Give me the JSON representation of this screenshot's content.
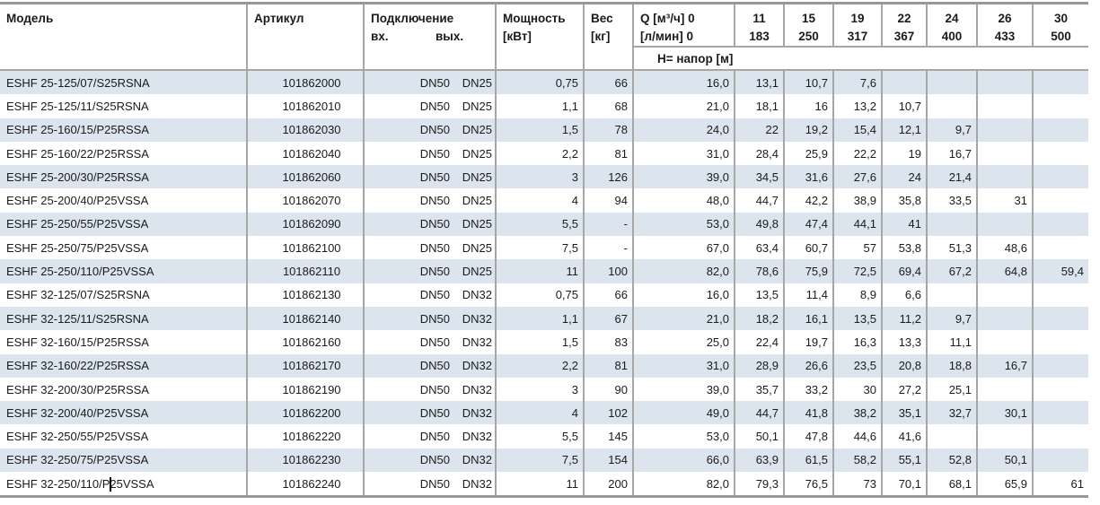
{
  "colors": {
    "stripe": "#dce4ee",
    "grid": "#a6a6a6",
    "frame": "#98989c",
    "text": "#1b1b1b"
  },
  "table": {
    "header": {
      "model": "Модель",
      "article": "Артикул",
      "connection": "Подключение",
      "inlet_label": "вх.",
      "outlet_label": "вых.",
      "power_line1": "Мощность",
      "power_line2": "[кВт]",
      "weight_line1": "Вес",
      "weight_line2": "[кг]",
      "q_line1": "Q [м³/ч] 0",
      "q_line2": "[л/мин] 0",
      "head_label": "Н= напор [м]",
      "flows": [
        {
          "m3h": "11",
          "lmin": "183"
        },
        {
          "m3h": "15",
          "lmin": "250"
        },
        {
          "m3h": "19",
          "lmin": "317"
        },
        {
          "m3h": "22",
          "lmin": "367"
        },
        {
          "m3h": "24",
          "lmin": "400"
        },
        {
          "m3h": "26",
          "lmin": "433"
        },
        {
          "m3h": "30",
          "lmin": "500"
        }
      ]
    },
    "rows": [
      {
        "model": "ESHF 25-125/07/S25RSNA",
        "article": "101862000",
        "inlet": "DN50",
        "outlet": "DN25",
        "power": "0,75",
        "weight": "66",
        "heads": [
          "16,0",
          "13,1",
          "10,7",
          "7,6",
          "",
          "",
          "",
          ""
        ]
      },
      {
        "model": "ESHF 25-125/11/S25RSNA",
        "article": "101862010",
        "inlet": "DN50",
        "outlet": "DN25",
        "power": "1,1",
        "weight": "68",
        "heads": [
          "21,0",
          "18,1",
          "16",
          "13,2",
          "10,7",
          "",
          "",
          ""
        ]
      },
      {
        "model": "ESHF 25-160/15/P25RSSA",
        "article": "101862030",
        "inlet": "DN50",
        "outlet": "DN25",
        "power": "1,5",
        "weight": "78",
        "heads": [
          "24,0",
          "22",
          "19,2",
          "15,4",
          "12,1",
          "9,7",
          "",
          ""
        ]
      },
      {
        "model": "ESHF 25-160/22/P25RSSA",
        "article": "101862040",
        "inlet": "DN50",
        "outlet": "DN25",
        "power": "2,2",
        "weight": "81",
        "heads": [
          "31,0",
          "28,4",
          "25,9",
          "22,2",
          "19",
          "16,7",
          "",
          ""
        ]
      },
      {
        "model": "ESHF 25-200/30/P25RSSA",
        "article": "101862060",
        "inlet": "DN50",
        "outlet": "DN25",
        "power": "3",
        "weight": "126",
        "heads": [
          "39,0",
          "34,5",
          "31,6",
          "27,6",
          "24",
          "21,4",
          "",
          ""
        ]
      },
      {
        "model": "ESHF 25-200/40/P25VSSA",
        "article": "101862070",
        "inlet": "DN50",
        "outlet": "DN25",
        "power": "4",
        "weight": "94",
        "heads": [
          "48,0",
          "44,7",
          "42,2",
          "38,9",
          "35,8",
          "33,5",
          "31",
          ""
        ]
      },
      {
        "model": "ESHF 25-250/55/P25VSSA",
        "article": "101862090",
        "inlet": "DN50",
        "outlet": "DN25",
        "power": "5,5",
        "weight": "-",
        "heads": [
          "53,0",
          "49,8",
          "47,4",
          "44,1",
          "41",
          "",
          "",
          ""
        ]
      },
      {
        "model": "ESHF 25-250/75/P25VSSA",
        "article": "101862100",
        "inlet": "DN50",
        "outlet": "DN25",
        "power": "7,5",
        "weight": "-",
        "heads": [
          "67,0",
          "63,4",
          "60,7",
          "57",
          "53,8",
          "51,3",
          "48,6",
          ""
        ]
      },
      {
        "model": "ESHF 25-250/110/P25VSSA",
        "article": "101862110",
        "inlet": "DN50",
        "outlet": "DN25",
        "power": "11",
        "weight": "100",
        "heads": [
          "82,0",
          "78,6",
          "75,9",
          "72,5",
          "69,4",
          "67,2",
          "64,8",
          "59,4"
        ]
      },
      {
        "model": "ESHF 32-125/07/S25RSNA",
        "article": "101862130",
        "inlet": "DN50",
        "outlet": "DN32",
        "power": "0,75",
        "weight": "66",
        "heads": [
          "16,0",
          "13,5",
          "11,4",
          "8,9",
          "6,6",
          "",
          "",
          ""
        ]
      },
      {
        "model": "ESHF 32-125/11/S25RSNA",
        "article": "101862140",
        "inlet": "DN50",
        "outlet": "DN32",
        "power": "1,1",
        "weight": "67",
        "heads": [
          "21,0",
          "18,2",
          "16,1",
          "13,5",
          "11,2",
          "9,7",
          "",
          ""
        ]
      },
      {
        "model": "ESHF 32-160/15/P25RSSA",
        "article": "101862160",
        "inlet": "DN50",
        "outlet": "DN32",
        "power": "1,5",
        "weight": "83",
        "heads": [
          "25,0",
          "22,4",
          "19,7",
          "16,3",
          "13,3",
          "11,1",
          "",
          ""
        ]
      },
      {
        "model": "ESHF 32-160/22/P25RSSA",
        "article": "101862170",
        "inlet": "DN50",
        "outlet": "DN32",
        "power": "2,2",
        "weight": "81",
        "heads": [
          "31,0",
          "28,9",
          "26,6",
          "23,5",
          "20,8",
          "18,8",
          "16,7",
          ""
        ]
      },
      {
        "model": "ESHF 32-200/30/P25RSSA",
        "article": "101862190",
        "inlet": "DN50",
        "outlet": "DN32",
        "power": "3",
        "weight": "90",
        "heads": [
          "39,0",
          "35,7",
          "33,2",
          "30",
          "27,2",
          "25,1",
          "",
          ""
        ]
      },
      {
        "model": "ESHF 32-200/40/P25VSSA",
        "article": "101862200",
        "inlet": "DN50",
        "outlet": "DN32",
        "power": "4",
        "weight": "102",
        "heads": [
          "49,0",
          "44,7",
          "41,8",
          "38,2",
          "35,1",
          "32,7",
          "30,1",
          ""
        ]
      },
      {
        "model": "ESHF 32-250/55/P25VSSA",
        "article": "101862220",
        "inlet": "DN50",
        "outlet": "DN32",
        "power": "5,5",
        "weight": "145",
        "heads": [
          "53,0",
          "50,1",
          "47,8",
          "44,6",
          "41,6",
          "",
          "",
          ""
        ]
      },
      {
        "model": "ESHF 32-250/75/P25VSSA",
        "article": "101862230",
        "inlet": "DN50",
        "outlet": "DN32",
        "power": "7,5",
        "weight": "154",
        "heads": [
          "66,0",
          "63,9",
          "61,5",
          "58,2",
          "55,1",
          "52,8",
          "50,1",
          ""
        ]
      },
      {
        "model": "ESHF 32-250/110/P25VSSA",
        "article": "101862240",
        "inlet": "DN50",
        "outlet": "DN32",
        "power": "11",
        "weight": "200",
        "heads": [
          "82,0",
          "79,3",
          "76,5",
          "73",
          "70,1",
          "68,1",
          "65,9",
          "61"
        ]
      }
    ]
  }
}
